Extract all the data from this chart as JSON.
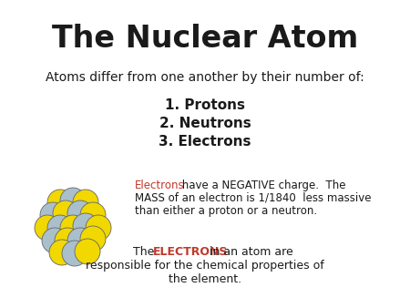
{
  "title": "The Nuclear Atom",
  "subtitle": "Atoms differ from one another by their number of:",
  "items": [
    "1. Protons",
    "2. Neutrons",
    "3. Electrons"
  ],
  "body1_red": "Electrons",
  "body1_black": " have a NEGATIVE charge.  The\nMASS of an electron is 1/1840  less massive\nthan either a proton or a neutron.",
  "body2_pre": "The ",
  "body2_red": "ELECTRONS",
  "body2_post": " in an atom are\nresponsible for the chemical properties of\nthe element.",
  "bg_color": "#ffffff",
  "title_color": "#1a1a1a",
  "black_color": "#1a1a1a",
  "red_color": "#c0392b",
  "atom_yellow": "#f0d800",
  "atom_gray": "#aabfcc",
  "atom_outline": "#666666"
}
